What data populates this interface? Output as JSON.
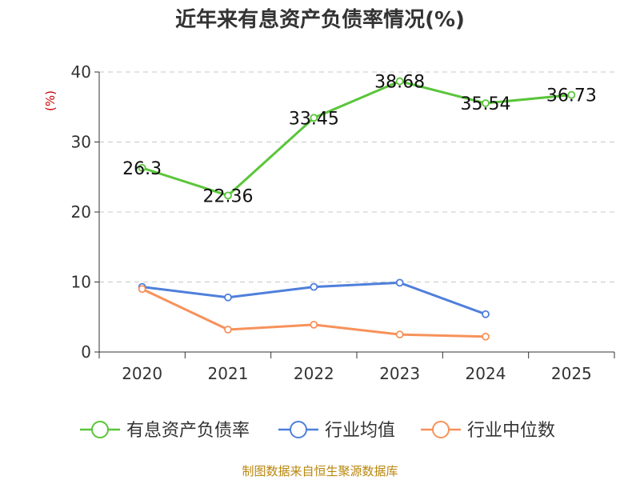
{
  "chart_data": {
    "type": "line",
    "title": "近年来有息资产负债率情况(%)",
    "ylabel": "(%)",
    "xlabel": "",
    "categories": [
      "2020",
      "2021",
      "2022",
      "2023",
      "2024",
      "2025"
    ],
    "ylim": [
      0,
      40
    ],
    "yticks": [
      0,
      10,
      20,
      30,
      40
    ],
    "grid": true,
    "legend_position": "bottom",
    "series": [
      {
        "name": "有息资产负债率",
        "color": "#5ac53a",
        "values": [
          26.3,
          22.36,
          33.45,
          38.68,
          35.54,
          36.73
        ],
        "labels": [
          "26.3",
          "22.36",
          "33.45",
          "38.68",
          "35.54",
          "36.73"
        ],
        "show_labels": true
      },
      {
        "name": "行业均值",
        "color": "#4e7fdb",
        "values": [
          9.3,
          7.8,
          9.3,
          9.9,
          5.4,
          null
        ],
        "show_labels": false
      },
      {
        "name": "行业中位数",
        "color": "#f7925a",
        "values": [
          9.0,
          3.2,
          3.9,
          2.5,
          2.2,
          null
        ],
        "show_labels": false
      }
    ]
  },
  "source": "制图数据来自恒生聚源数据库"
}
